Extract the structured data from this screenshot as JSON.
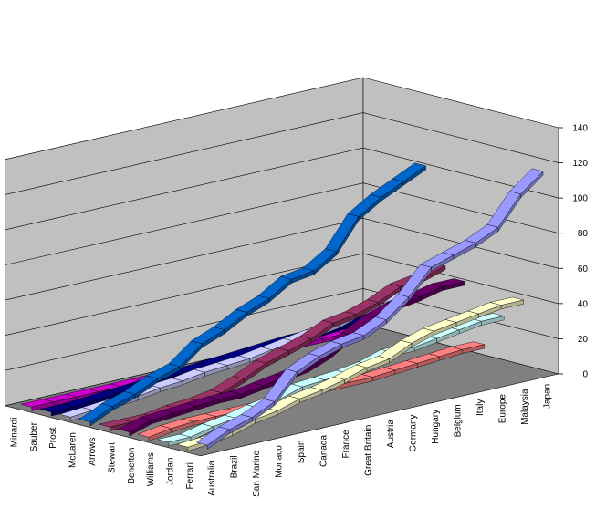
{
  "chart_data": {
    "type": "line",
    "style": "3d-ribbon",
    "title": "",
    "xlabel": "",
    "ylabel": "",
    "zlim": [
      0,
      140
    ],
    "z_ticks": [
      "0",
      "20",
      "40",
      "60",
      "80",
      "100",
      "120",
      "140"
    ],
    "grid": true,
    "legend": "none",
    "categories": [
      "Australia",
      "Brazil",
      "San Marino",
      "Monaco",
      "Spain",
      "Canada",
      "France",
      "Great Britain",
      "Austria",
      "Germany",
      "Hungary",
      "Belgium",
      "Italy",
      "Europe",
      "Malaysia",
      "Japan"
    ],
    "series": [
      {
        "name": "Ferrari",
        "color": "#9999ff",
        "values": [
          4,
          10,
          14,
          20,
          34,
          40,
          44,
          46,
          52,
          62,
          76,
          80,
          84,
          90,
          106,
          116
        ]
      },
      {
        "name": "Jordan",
        "color": "#ffffcc",
        "values": [
          0,
          1,
          3,
          7,
          9,
          13,
          15,
          18,
          22,
          24,
          30,
          34,
          36,
          38,
          40,
          40
        ]
      },
      {
        "name": "Williams",
        "color": "#ccffff",
        "values": [
          0,
          0,
          3,
          5,
          8,
          10,
          14,
          15,
          16,
          18,
          22,
          22,
          24,
          26,
          28,
          28
        ]
      },
      {
        "name": "Benetton",
        "color": "#ff8080",
        "values": [
          0,
          2,
          3,
          3,
          3,
          3,
          3,
          3,
          5,
          5,
          5,
          6,
          7,
          8,
          9,
          9
        ]
      },
      {
        "name": "Stewart",
        "color": "#660066",
        "values": [
          0,
          4,
          5,
          6,
          7,
          7,
          9,
          11,
          13,
          18,
          26,
          33,
          37,
          39,
          42,
          42
        ]
      },
      {
        "name": "Arrows",
        "color": "#993366",
        "values": [
          0,
          0,
          0,
          2,
          3,
          5,
          10,
          16,
          20,
          24,
          30,
          32,
          36,
          42,
          44,
          48
        ]
      },
      {
        "name": "McLaren",
        "color": "#0066cc",
        "values": [
          0,
          6,
          10,
          16,
          20,
          30,
          35,
          42,
          47,
          55,
          57,
          65,
          82,
          90,
          96,
          102
        ]
      },
      {
        "name": "Prost",
        "color": "#ccccff",
        "values": [
          0,
          1,
          2,
          3,
          5,
          6,
          8,
          9,
          10,
          12,
          14,
          16,
          18,
          22,
          24,
          26
        ]
      },
      {
        "name": "Sauber",
        "color": "#000080",
        "values": [
          0,
          0,
          1,
          2,
          3,
          4,
          5,
          6,
          7,
          8,
          9,
          10,
          10,
          11,
          12,
          12
        ]
      },
      {
        "name": "Minardi",
        "color": "#cc00cc",
        "values": [
          0,
          0,
          0,
          0,
          0,
          0,
          0,
          0,
          0,
          1,
          1,
          1,
          1,
          1,
          1,
          1
        ]
      }
    ]
  },
  "colors": {
    "background": "#ffffff",
    "walls": "#c0c0c0",
    "floor": "#808080"
  }
}
